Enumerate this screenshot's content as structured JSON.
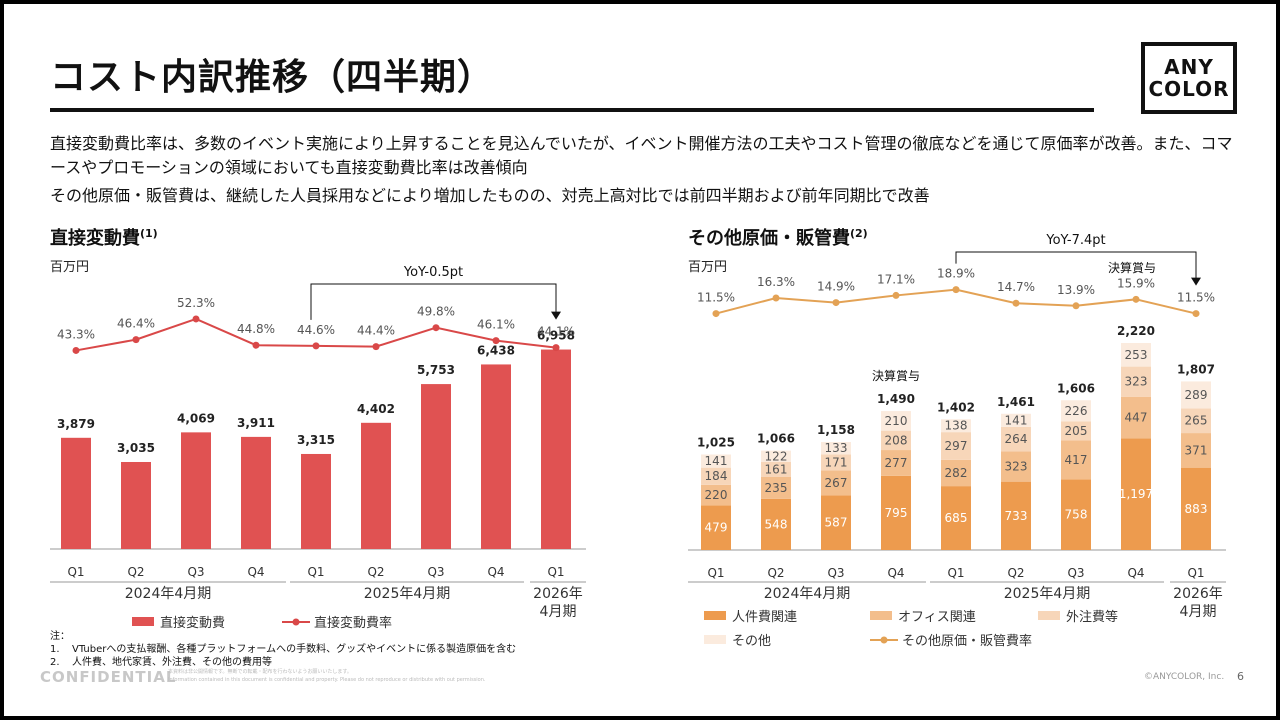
{
  "title": "コスト内訳推移（四半期）",
  "logo": {
    "line1": "ANY",
    "line2": "COLOR"
  },
  "summary": [
    "直接変動費比率は、多数のイベント実施により上昇することを見込んでいたが、イベント開催方法の工夫やコスト管理の徹底などを通じて原価率が改善。また、コマースやプロモーションの領域においても直接変動費比率は改善傾向",
    "その他原価・販管費は、継続した人員採用などにより増加したものの、対売上高対比では前四半期および前年同期比で改善"
  ],
  "left_section": {
    "title": "直接変動費",
    "sup": "(1)",
    "unit": "百万円"
  },
  "right_section": {
    "title": "その他原価・販管費",
    "sup": "(2)",
    "unit": "百万円"
  },
  "colors": {
    "direct_bar": "#E05252",
    "direct_line": "#D94848",
    "personnel": "#ED9B4E",
    "office": "#F3BE8C",
    "outsourcing": "#F7D6B9",
    "other": "#FBEBDE",
    "other_line": "#E3A255"
  },
  "chart_data": [
    {
      "type": "bar",
      "categories": [
        "Q1",
        "Q2",
        "Q3",
        "Q4",
        "Q1",
        "Q2",
        "Q3",
        "Q4",
        "Q1"
      ],
      "groups": [
        {
          "label": "2024年4月期"
        },
        {
          "label": "2025年4月期"
        },
        {
          "label": "2026年4月期",
          "label_lines": [
            "2026年",
            "4月期"
          ]
        }
      ],
      "series": [
        {
          "name": "直接変動費",
          "type": "bar",
          "values": [
            3879,
            3035,
            4069,
            3911,
            3315,
            4402,
            5753,
            6438,
            6958
          ],
          "labels": [
            "3,879",
            "3,035",
            "4,069",
            "3,911",
            "3,315",
            "4,402",
            "5,753",
            "6,438",
            "6,958"
          ]
        },
        {
          "name": "直接変動費率",
          "type": "line",
          "values": [
            43.3,
            46.4,
            52.3,
            44.8,
            44.6,
            44.4,
            49.8,
            46.1,
            44.1
          ],
          "labels": [
            "43.3%",
            "46.4%",
            "52.3%",
            "44.8%",
            "44.6%",
            "44.4%",
            "49.8%",
            "46.1%",
            "44.1%"
          ]
        }
      ],
      "annotations": [
        {
          "text": "YoY-0.5pt",
          "from": 4,
          "to": 8
        }
      ]
    },
    {
      "type": "bar",
      "stacked": true,
      "categories": [
        "Q1",
        "Q2",
        "Q3",
        "Q4",
        "Q1",
        "Q2",
        "Q3",
        "Q4",
        "Q1"
      ],
      "groups": [
        {
          "label": "2024年4月期"
        },
        {
          "label": "2025年4月期"
        },
        {
          "label": "2026年4月期",
          "label_lines": [
            "2026年",
            "4月期"
          ]
        }
      ],
      "series": [
        {
          "name": "人件費関連",
          "values": [
            479,
            548,
            587,
            795,
            685,
            733,
            758,
            1197,
            883
          ],
          "labels": [
            "479",
            "548",
            "587",
            "795",
            "685",
            "733",
            "758",
            "1,197",
            "883"
          ]
        },
        {
          "name": "オフィス関連",
          "values": [
            220,
            235,
            267,
            277,
            282,
            323,
            417,
            447,
            371
          ],
          "labels": [
            "220",
            "235",
            "267",
            "277",
            "282",
            "323",
            "417",
            "447",
            "371"
          ]
        },
        {
          "name": "外注費等",
          "values": [
            184,
            161,
            171,
            208,
            297,
            264,
            205,
            323,
            265
          ],
          "labels": [
            "184",
            "161",
            "171",
            "208",
            "297",
            "264",
            "205",
            "323",
            "265"
          ]
        },
        {
          "name": "その他",
          "values": [
            141,
            122,
            133,
            210,
            138,
            141,
            226,
            253,
            289
          ],
          "labels": [
            "141",
            "122",
            "133",
            "210",
            "138",
            "141",
            "226",
            "253",
            "289"
          ]
        }
      ],
      "totals": [
        1025,
        1066,
        1158,
        1490,
        1402,
        1461,
        1606,
        2220,
        1807
      ],
      "total_labels": [
        "1,025",
        "1,066",
        "1,158",
        "1,490",
        "1,402",
        "1,461",
        "1,606",
        "2,220",
        "1,807"
      ],
      "ratio": {
        "name": "その他原価・販管費率",
        "values": [
          11.5,
          16.3,
          14.9,
          17.1,
          18.9,
          14.7,
          13.9,
          15.9,
          11.5
        ],
        "labels": [
          "11.5%",
          "16.3%",
          "14.9%",
          "17.1%",
          "18.9%",
          "14.7%",
          "13.9%",
          "15.9%",
          "11.5%"
        ]
      },
      "annotations": [
        {
          "text": "YoY-7.4pt",
          "from": 4,
          "to": 8
        },
        {
          "text": "決算賞与",
          "at": 3
        },
        {
          "text": "決算賞与",
          "at": 7
        }
      ]
    }
  ],
  "notes": {
    "header": "注：",
    "items": [
      {
        "num": "1.",
        "text": "VTuberへの支払報酬、各種プラットフォームへの手数料、グッズやイベントに係る製造原価を含む"
      },
      {
        "num": "2.",
        "text": "人件費、地代家賃、外注費、その他の費用等"
      }
    ]
  },
  "footer": {
    "confidential": "CONFIDENTIAL",
    "disclaimer1": "本資料は非公開情報です。無断での転載・配布を行わないようお願いいたします。",
    "disclaimer2": "Information contained in this document is confidential and property. Please do not reproduce or distribute with out permission.",
    "copyright": "©ANYCOLOR, Inc.",
    "page": "6"
  }
}
